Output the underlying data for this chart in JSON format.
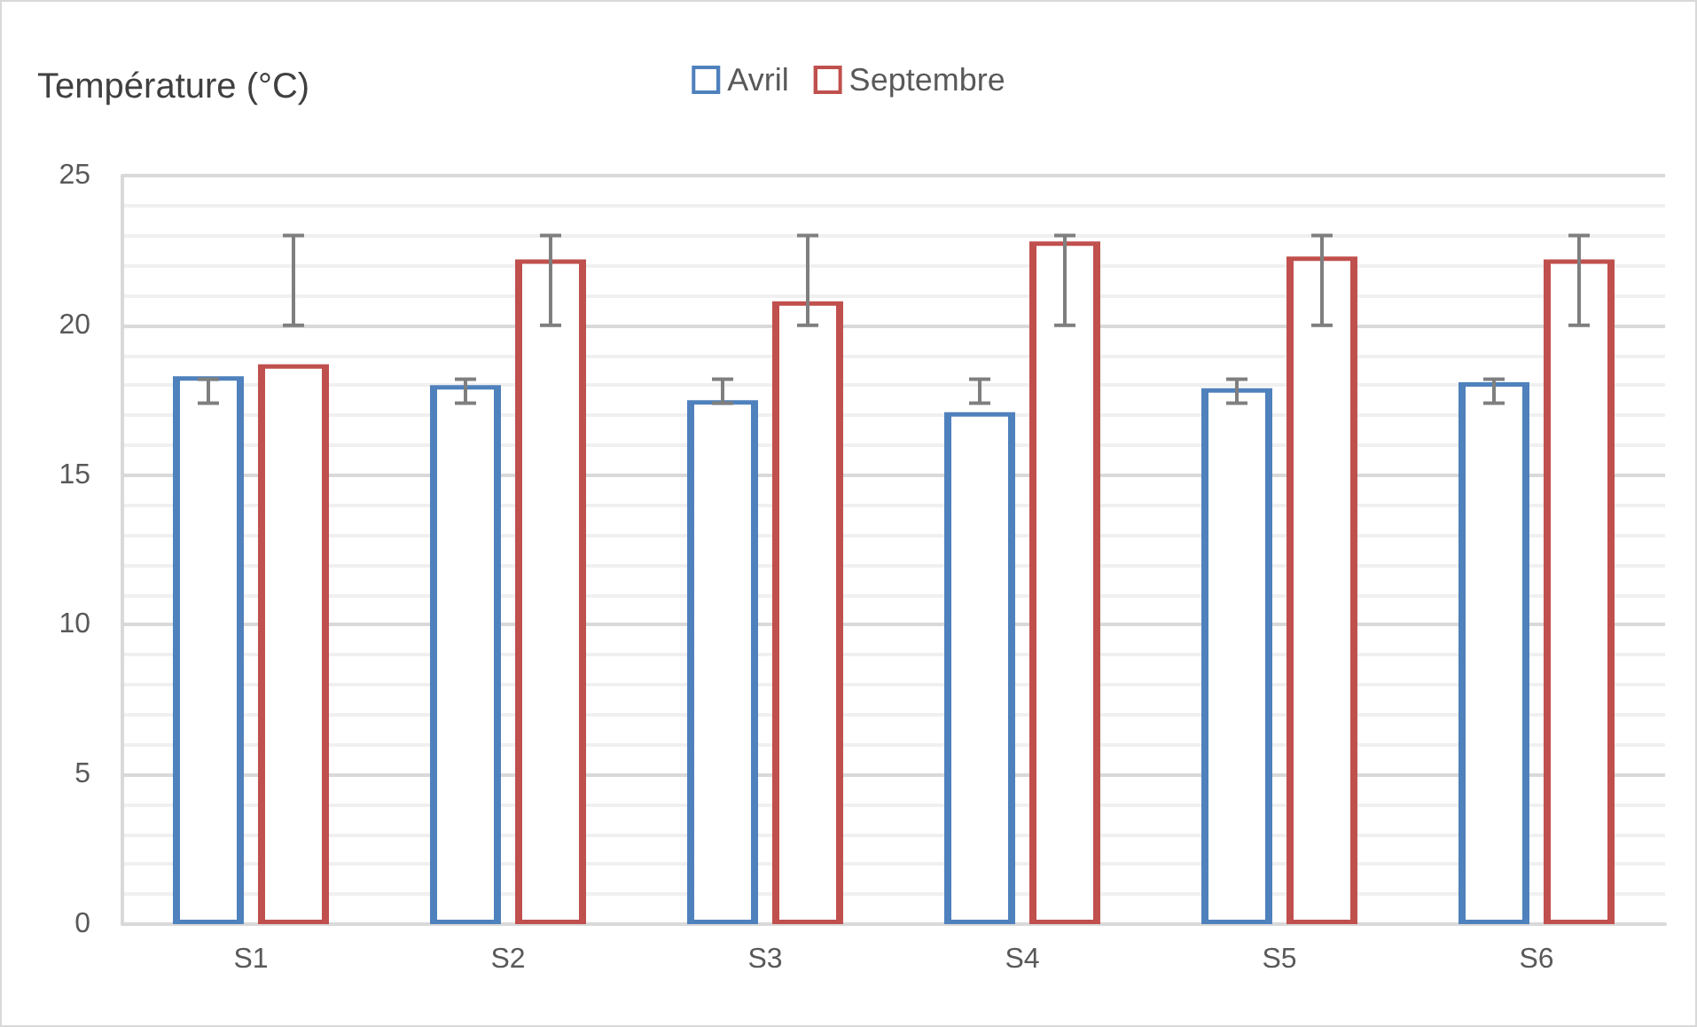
{
  "chart_data": {
    "type": "bar",
    "ylabel": "Température (°C)",
    "categories": [
      "S1",
      "S2",
      "S3",
      "S4",
      "S5",
      "S6"
    ],
    "series": [
      {
        "name": "Avril",
        "color": "#4f81bd",
        "values": [
          18.3,
          18.0,
          17.5,
          17.1,
          17.9,
          18.1
        ],
        "errors": [
          [
            17.4,
            18.2
          ],
          [
            17.4,
            18.2
          ],
          [
            17.4,
            18.2
          ],
          [
            17.4,
            18.2
          ],
          [
            17.4,
            18.2
          ],
          [
            17.4,
            18.2
          ]
        ]
      },
      {
        "name": "Septembre",
        "color": "#c0504d",
        "values": [
          18.7,
          22.2,
          20.8,
          22.8,
          22.3,
          22.2
        ],
        "errors": [
          [
            20,
            23
          ],
          [
            20,
            23
          ],
          [
            20,
            23
          ],
          [
            20,
            23
          ],
          [
            20,
            23
          ],
          [
            20,
            23
          ]
        ]
      }
    ],
    "ylim": [
      0,
      25
    ],
    "yticks": [
      0,
      5,
      10,
      15,
      20,
      25
    ],
    "grid": "y",
    "legend": "top"
  }
}
